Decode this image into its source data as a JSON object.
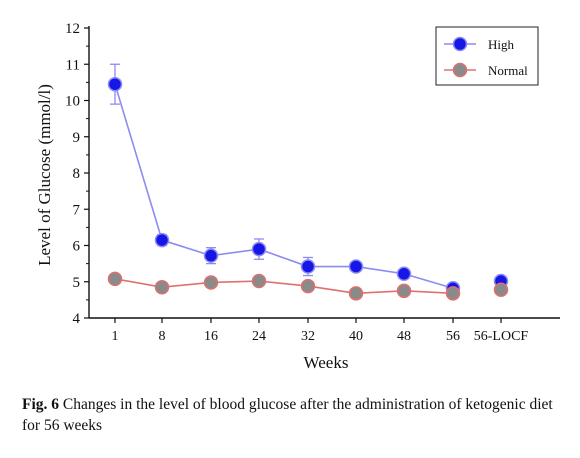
{
  "chart_data": {
    "type": "line",
    "xlabel": "Weeks",
    "ylabel": "Level of Glucose (mmol/l)",
    "categories": [
      "1",
      "8",
      "16",
      "24",
      "32",
      "40",
      "48",
      "56",
      "56-LOCF"
    ],
    "ylim": [
      4,
      12
    ],
    "yticks": [
      4,
      5,
      6,
      7,
      8,
      9,
      10,
      11,
      12
    ],
    "legend_position": "top-right",
    "series": [
      {
        "name": "High",
        "color": "#1616e6",
        "line_color": "#8c8cf0",
        "connected_count": 8,
        "values": [
          10.45,
          6.15,
          5.72,
          5.9,
          5.42,
          5.42,
          5.22,
          4.82,
          5.02
        ],
        "errors": [
          0.55,
          0.15,
          0.22,
          0.28,
          0.25,
          0.1,
          0.08,
          0.08,
          0.08
        ]
      },
      {
        "name": "Normal",
        "color": "#8a8a8a",
        "line_color": "#e07070",
        "connected_count": 8,
        "values": [
          5.08,
          4.85,
          4.98,
          5.02,
          4.88,
          4.68,
          4.75,
          4.68,
          4.78
        ],
        "errors": [
          0.05,
          0.05,
          0.05,
          0.05,
          0.05,
          0.05,
          0.05,
          0.05,
          0.05
        ]
      }
    ]
  },
  "caption": {
    "label": "Fig. 6",
    "text": "Changes in the level of blood glucose after the administration of ketogenic diet for 56 weeks"
  }
}
